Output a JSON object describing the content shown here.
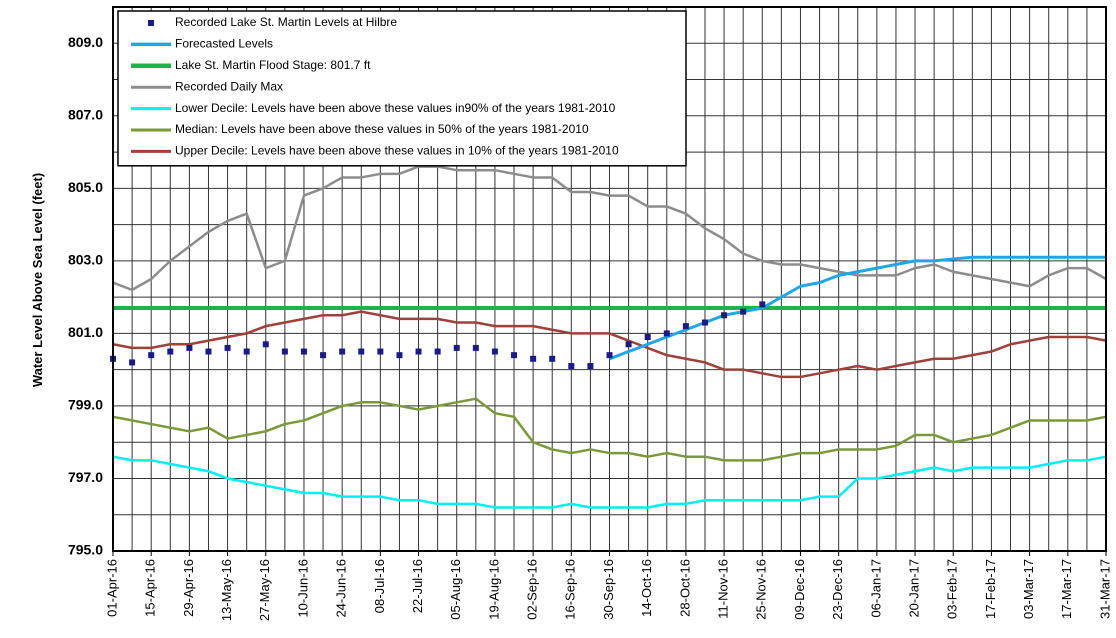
{
  "chart_data": {
    "type": "line",
    "ylabel": "Water Level Above Sea Level (feet)",
    "x": [
      "2016-04-01",
      "2016-04-08",
      "2016-04-15",
      "2016-04-22",
      "2016-04-29",
      "2016-05-06",
      "2016-05-13",
      "2016-05-20",
      "2016-05-27",
      "2016-06-03",
      "2016-06-10",
      "2016-06-17",
      "2016-06-24",
      "2016-07-01",
      "2016-07-08",
      "2016-07-15",
      "2016-07-22",
      "2016-07-29",
      "2016-08-05",
      "2016-08-12",
      "2016-08-19",
      "2016-08-26",
      "2016-09-02",
      "2016-09-09",
      "2016-09-16",
      "2016-09-23",
      "2016-09-30",
      "2016-10-07",
      "2016-10-14",
      "2016-10-21",
      "2016-10-28",
      "2016-11-04",
      "2016-11-11",
      "2016-11-18",
      "2016-11-25",
      "2016-12-02",
      "2016-12-09",
      "2016-12-16",
      "2016-12-23",
      "2016-12-30",
      "2017-01-06",
      "2017-01-13",
      "2017-01-20",
      "2017-01-27",
      "2017-02-03",
      "2017-02-10",
      "2017-02-17",
      "2017-02-24",
      "2017-03-03",
      "2017-03-10",
      "2017-03-17",
      "2017-03-24",
      "2017-03-31"
    ],
    "series": [
      {
        "name": "Recorded Lake St. Martin Levels at Hilbre",
        "color": "#1b1b85",
        "style": "markers",
        "values": [
          800.3,
          800.2,
          800.4,
          800.5,
          800.6,
          800.5,
          800.6,
          800.5,
          800.7,
          800.5,
          800.5,
          800.4,
          800.5,
          800.5,
          800.5,
          800.4,
          800.5,
          800.5,
          800.6,
          800.6,
          800.5,
          800.4,
          800.3,
          800.3,
          800.1,
          800.1,
          800.4,
          800.7,
          800.9,
          801.0,
          801.2,
          801.3,
          801.5,
          801.6,
          801.8,
          null,
          null,
          null,
          null,
          null,
          null,
          null,
          null,
          null,
          null,
          null,
          null,
          null,
          null,
          null,
          null,
          null,
          null
        ]
      },
      {
        "name": "Forecasted Levels",
        "color": "#1ea7e8",
        "style": "line",
        "width": 3,
        "values": [
          null,
          null,
          null,
          null,
          null,
          null,
          null,
          null,
          null,
          null,
          null,
          null,
          null,
          null,
          null,
          null,
          null,
          null,
          null,
          null,
          null,
          null,
          null,
          null,
          null,
          null,
          800.3,
          800.5,
          800.7,
          800.9,
          801.1,
          801.3,
          801.5,
          801.6,
          801.7,
          802.0,
          802.3,
          802.4,
          802.6,
          802.7,
          802.8,
          802.9,
          803.0,
          803.0,
          803.05,
          803.1,
          803.1,
          803.1,
          803.1,
          803.1,
          803.1,
          803.1,
          803.1
        ]
      },
      {
        "name": "Lake St. Martin Flood Stage: 801.7 ft",
        "color": "#1db34a",
        "style": "line",
        "width": 4,
        "values": [
          801.7,
          801.7,
          801.7,
          801.7,
          801.7,
          801.7,
          801.7,
          801.7,
          801.7,
          801.7,
          801.7,
          801.7,
          801.7,
          801.7,
          801.7,
          801.7,
          801.7,
          801.7,
          801.7,
          801.7,
          801.7,
          801.7,
          801.7,
          801.7,
          801.7,
          801.7,
          801.7,
          801.7,
          801.7,
          801.7,
          801.7,
          801.7,
          801.7,
          801.7,
          801.7,
          801.7,
          801.7,
          801.7,
          801.7,
          801.7,
          801.7,
          801.7,
          801.7,
          801.7,
          801.7,
          801.7,
          801.7,
          801.7,
          801.7,
          801.7,
          801.7,
          801.7,
          801.7
        ]
      },
      {
        "name": "Recorded Daily Max",
        "color": "#8c8c8c",
        "style": "line",
        "width": 2.5,
        "values": [
          802.4,
          802.2,
          802.5,
          803.0,
          803.4,
          803.8,
          804.1,
          804.3,
          802.8,
          803.0,
          804.8,
          805.0,
          805.3,
          805.3,
          805.4,
          805.4,
          805.6,
          805.6,
          805.5,
          805.5,
          805.5,
          805.4,
          805.3,
          805.3,
          804.9,
          804.9,
          804.8,
          804.8,
          804.5,
          804.5,
          804.3,
          803.9,
          803.6,
          803.2,
          803.0,
          802.9,
          802.9,
          802.8,
          802.7,
          802.6,
          802.6,
          802.6,
          802.8,
          802.9,
          802.7,
          802.6,
          802.5,
          802.4,
          802.3,
          802.6,
          802.8,
          802.8,
          802.5
        ]
      },
      {
        "name": "Lower Decile: Levels have been above these values in90% of the years 1981-2010",
        "color": "#00eef6",
        "style": "line",
        "width": 2.5,
        "values": [
          797.6,
          797.5,
          797.5,
          797.4,
          797.3,
          797.2,
          797.0,
          796.9,
          796.8,
          796.7,
          796.6,
          796.6,
          796.5,
          796.5,
          796.5,
          796.4,
          796.4,
          796.3,
          796.3,
          796.3,
          796.2,
          796.2,
          796.2,
          796.2,
          796.3,
          796.2,
          796.2,
          796.2,
          796.2,
          796.3,
          796.3,
          796.4,
          796.4,
          796.4,
          796.4,
          796.4,
          796.4,
          796.5,
          796.5,
          797.0,
          797.0,
          797.1,
          797.2,
          797.3,
          797.2,
          797.3,
          797.3,
          797.3,
          797.3,
          797.4,
          797.5,
          797.5,
          797.6
        ]
      },
      {
        "name": "Median: Levels have been above these values in 50% of the years 1981-2010",
        "color": "#7a9a3a",
        "style": "line",
        "width": 2.5,
        "values": [
          798.7,
          798.6,
          798.5,
          798.4,
          798.3,
          798.4,
          798.1,
          798.2,
          798.3,
          798.5,
          798.6,
          798.8,
          799.0,
          799.1,
          799.1,
          799.0,
          798.9,
          799.0,
          799.1,
          799.2,
          798.8,
          798.7,
          798.0,
          797.8,
          797.7,
          797.8,
          797.7,
          797.7,
          797.6,
          797.7,
          797.6,
          797.6,
          797.5,
          797.5,
          797.5,
          797.6,
          797.7,
          797.7,
          797.8,
          797.8,
          797.8,
          797.9,
          798.2,
          798.2,
          798.0,
          798.1,
          798.2,
          798.4,
          798.6,
          798.6,
          798.6,
          798.6,
          798.7
        ]
      },
      {
        "name": "Upper Decile: Levels have been above these values in 10% of the years 1981-2010",
        "color": "#a0403a",
        "style": "line",
        "width": 2.5,
        "values": [
          800.7,
          800.6,
          800.6,
          800.7,
          800.7,
          800.8,
          800.9,
          801.0,
          801.2,
          801.3,
          801.4,
          801.5,
          801.5,
          801.6,
          801.5,
          801.4,
          801.4,
          801.4,
          801.3,
          801.3,
          801.2,
          801.2,
          801.2,
          801.1,
          801.0,
          801.0,
          801.0,
          800.8,
          800.6,
          800.4,
          800.3,
          800.2,
          800.0,
          800.0,
          799.9,
          799.8,
          799.8,
          799.9,
          800.0,
          800.1,
          800.0,
          800.1,
          800.2,
          800.3,
          800.3,
          800.4,
          800.5,
          800.7,
          800.8,
          800.9,
          800.9,
          800.9,
          800.8
        ]
      }
    ],
    "xlim": [
      "2016-04-01",
      "2017-03-31"
    ],
    "xticks": [
      {
        "value": "2016-04-01",
        "label": "01-Apr-16"
      },
      {
        "value": "2016-04-15",
        "label": "15-Apr-16"
      },
      {
        "value": "2016-04-29",
        "label": "29-Apr-16"
      },
      {
        "value": "2016-05-13",
        "label": "13-May-16"
      },
      {
        "value": "2016-05-27",
        "label": "27-May-16"
      },
      {
        "value": "2016-06-10",
        "label": "10-Jun-16"
      },
      {
        "value": "2016-06-24",
        "label": "24-Jun-16"
      },
      {
        "value": "2016-07-08",
        "label": "08-Jul-16"
      },
      {
        "value": "2016-07-22",
        "label": "22-Jul-16"
      },
      {
        "value": "2016-08-05",
        "label": "05-Aug-16"
      },
      {
        "value": "2016-08-19",
        "label": "19-Aug-16"
      },
      {
        "value": "2016-09-02",
        "label": "02-Sep-16"
      },
      {
        "value": "2016-09-16",
        "label": "16-Sep-16"
      },
      {
        "value": "2016-09-30",
        "label": "30-Sep-16"
      },
      {
        "value": "2016-10-14",
        "label": "14-Oct-16"
      },
      {
        "value": "2016-10-28",
        "label": "28-Oct-16"
      },
      {
        "value": "2016-11-11",
        "label": "11-Nov-16"
      },
      {
        "value": "2016-11-25",
        "label": "25-Nov-16"
      },
      {
        "value": "2016-12-09",
        "label": "09-Dec-16"
      },
      {
        "value": "2016-12-23",
        "label": "23-Dec-16"
      },
      {
        "value": "2017-01-06",
        "label": "06-Jan-17"
      },
      {
        "value": "2017-01-20",
        "label": "20-Jan-17"
      },
      {
        "value": "2017-02-03",
        "label": "03-Feb-17"
      },
      {
        "value": "2017-02-17",
        "label": "17-Feb-17"
      },
      {
        "value": "2017-03-03",
        "label": "03-Mar-17"
      },
      {
        "value": "2017-03-17",
        "label": "17-Mar-17"
      },
      {
        "value": "2017-03-31",
        "label": "31-Mar-17"
      }
    ],
    "ylim": [
      795,
      810
    ],
    "yticks": [
      {
        "value": 795,
        "label": "795.0"
      },
      {
        "value": 797,
        "label": "797.0"
      },
      {
        "value": 799,
        "label": "799.0"
      },
      {
        "value": 801,
        "label": "801.0"
      },
      {
        "value": 803,
        "label": "803.0"
      },
      {
        "value": 805,
        "label": "805.0"
      },
      {
        "value": 807,
        "label": "807.0"
      },
      {
        "value": 809,
        "label": "809.0"
      }
    ],
    "yminorticks": [
      796,
      798,
      800,
      802,
      804,
      806,
      808
    ],
    "grid": true,
    "legend": "upper left"
  }
}
